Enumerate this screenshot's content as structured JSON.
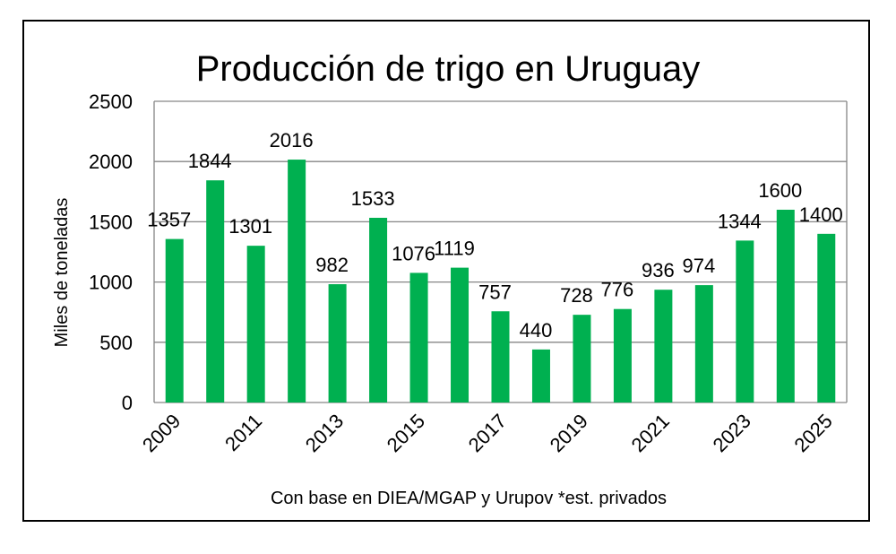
{
  "chart_data": {
    "type": "bar",
    "title": "Producción de trigo en Uruguay",
    "ylabel": "Miles de toneladas",
    "xlabel": "Con base en DIEA/MGAP y Urupov *est. privados",
    "ylim": [
      0,
      2500
    ],
    "yticks": [
      0,
      500,
      1000,
      1500,
      2000,
      2500
    ],
    "grid": true,
    "bar_color": "#00b050",
    "categories": [
      "2009",
      "2010",
      "2011",
      "2012",
      "2013",
      "2014",
      "2015",
      "2016",
      "2017",
      "2018",
      "2019",
      "2020",
      "2021",
      "2022",
      "2023",
      "2024",
      "2025"
    ],
    "xtick_labels": [
      "2009",
      "",
      "2011",
      "",
      "2013",
      "",
      "2015",
      "",
      "2017",
      "",
      "2019",
      "",
      "2021",
      "",
      "2023",
      "",
      "2025"
    ],
    "values": [
      1357,
      1844,
      1301,
      2016,
      982,
      1533,
      1076,
      1119,
      757,
      440,
      728,
      776,
      936,
      974,
      1344,
      1600,
      1400
    ],
    "data_labels": [
      "1357",
      "1844",
      "1301",
      "2016",
      "982",
      "1533",
      "1076",
      "1119",
      "757",
      "440",
      "728",
      "776",
      "936",
      "974",
      "1344",
      "1600",
      "1400"
    ]
  }
}
